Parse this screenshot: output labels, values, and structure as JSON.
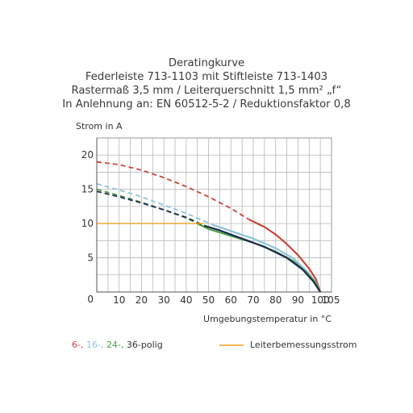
{
  "title_lines": [
    "Deratingkurve",
    "Federleiste 713-1103 mit Stiftleiste 713-1403",
    "Rastermaß 3,5 mm / Leiterquerschnitt 1,5 mm² „f“",
    "In Anlehnung an: EN 60512-5-2 / Reduktionsfaktor 0,8"
  ],
  "chart_data": {
    "type": "line",
    "ylabel": "Strom in A",
    "xlabel": "Umgebungstemperatur in °C",
    "xlim": [
      0,
      105
    ],
    "ylim": [
      0,
      22.5
    ],
    "x_ticks": [
      10,
      20,
      30,
      40,
      50,
      60,
      70,
      80,
      90,
      100,
      105
    ],
    "y_ticks": [
      5,
      10,
      15,
      20
    ],
    "x_origin_label": "0",
    "grid": true,
    "series": [
      {
        "name": "6-",
        "color": "#c8463c",
        "dashed": [
          [
            0,
            19.0
          ],
          [
            10,
            18.6
          ],
          [
            20,
            17.8
          ],
          [
            30,
            16.7
          ],
          [
            40,
            15.4
          ],
          [
            50,
            13.9
          ],
          [
            60,
            12.2
          ],
          [
            68,
            10.6
          ]
        ],
        "solid": [
          [
            68,
            10.6
          ],
          [
            75,
            9.5
          ],
          [
            80,
            8.4
          ],
          [
            85,
            7.0
          ],
          [
            90,
            5.4
          ],
          [
            95,
            3.4
          ],
          [
            98,
            1.9
          ],
          [
            100,
            0
          ]
        ]
      },
      {
        "name": "16-",
        "color": "#8cc4dd",
        "dashed": [
          [
            0,
            15.8
          ],
          [
            10,
            14.9
          ],
          [
            20,
            13.9
          ],
          [
            30,
            12.7
          ],
          [
            40,
            11.5
          ],
          [
            52,
            9.8
          ]
        ],
        "solid": [
          [
            52,
            9.8
          ],
          [
            60,
            8.9
          ],
          [
            70,
            7.8
          ],
          [
            80,
            6.4
          ],
          [
            88,
            4.9
          ],
          [
            94,
            3.0
          ],
          [
            98,
            1.4
          ],
          [
            100,
            0
          ]
        ]
      },
      {
        "name": "24-",
        "color": "#52a04a",
        "dashed": [
          [
            0,
            15.0
          ],
          [
            10,
            14.1
          ],
          [
            20,
            13.1
          ],
          [
            30,
            12.0
          ],
          [
            40,
            10.8
          ],
          [
            45,
            10.0
          ]
        ],
        "solid": [
          [
            45,
            10.0
          ],
          [
            50,
            9.2
          ],
          [
            60,
            8.2
          ],
          [
            70,
            7.2
          ],
          [
            80,
            5.9
          ],
          [
            88,
            4.5
          ],
          [
            94,
            2.8
          ],
          [
            98,
            1.3
          ],
          [
            100,
            0
          ]
        ]
      },
      {
        "name": "36-polig",
        "color": "#1e2a4e",
        "dashed": [
          [
            0,
            14.7
          ],
          [
            10,
            13.9
          ],
          [
            20,
            13.0
          ],
          [
            30,
            12.0
          ],
          [
            40,
            10.9
          ],
          [
            48,
            9.7
          ]
        ],
        "solid": [
          [
            48,
            9.7
          ],
          [
            55,
            9.0
          ],
          [
            65,
            7.8
          ],
          [
            75,
            6.6
          ],
          [
            85,
            5.0
          ],
          [
            92,
            3.3
          ],
          [
            97,
            1.5
          ],
          [
            100,
            0
          ]
        ]
      },
      {
        "name": "Leiterbemessungsstrom",
        "color": "#f0a020",
        "dashed": [],
        "solid": [
          [
            0,
            10.0
          ],
          [
            48,
            10.0
          ]
        ]
      }
    ]
  },
  "legend": {
    "items": [
      {
        "label": "6-,",
        "color": "#c8463c"
      },
      {
        "label": "16-,",
        "color": "#8cc4dd"
      },
      {
        "label": "24-,",
        "color": "#52a04a"
      },
      {
        "label": "36-polig",
        "color": "#333333"
      }
    ],
    "rated_current_label": "Leiterbemessungsstrom",
    "rated_current_color": "#f0a020"
  }
}
